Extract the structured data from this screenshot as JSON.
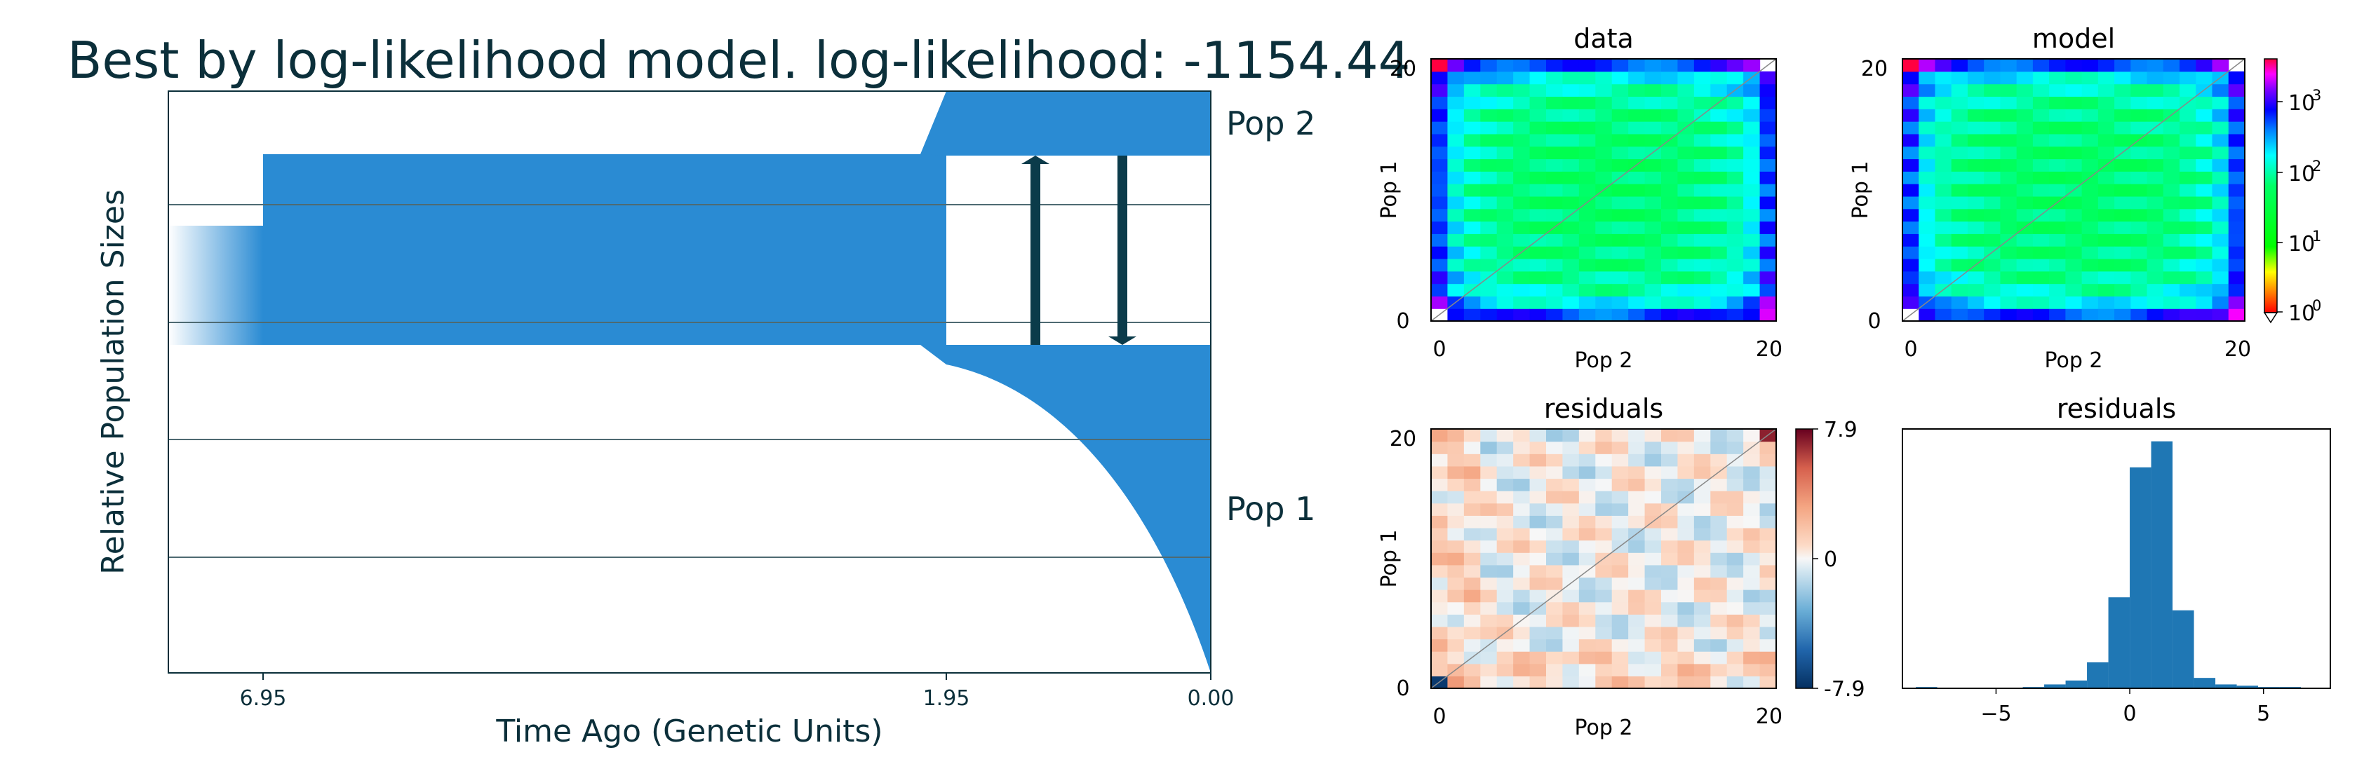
{
  "title": "Best by log-likelihood model. log-likelihood: -1154.44",
  "chart_data": [
    {
      "type": "area",
      "name": "demographic-model",
      "xlabel": "Time Ago (Genetic Units)",
      "ylabel": "Relative Population Sizes",
      "x_ticks": [
        "6.95",
        "1.95",
        "0.00"
      ],
      "populations": [
        "Pop 2",
        "Pop 1"
      ],
      "epochs": [
        {
          "from": 6.95,
          "to": null,
          "description": "ancestral population (before 6.95)"
        },
        {
          "from": 6.95,
          "to": 1.95,
          "description": "ancestral population after size change"
        },
        {
          "from": 1.95,
          "to": 0.0,
          "description": "split into Pop 2 (constant) and Pop 1 (exponential growth)"
        }
      ],
      "migration_arrows": [
        "Pop 1 to Pop 2",
        "Pop 2 to Pop 1"
      ],
      "color": "#2a8bd3",
      "gridline_color": "#4e6a72",
      "arrow_color": "#0b3b4a"
    },
    {
      "type": "heatmap",
      "title": "data",
      "xlabel": "Pop 2",
      "ylabel": "Pop 1",
      "x_ticks": [
        "0",
        "20"
      ],
      "y_ticks": [
        "0",
        "20"
      ],
      "colormap": "hsv",
      "log_scale": true
    },
    {
      "type": "heatmap",
      "title": "model",
      "xlabel": "Pop 2",
      "ylabel": "Pop 1",
      "x_ticks": [
        "0",
        "20"
      ],
      "y_ticks": [
        "0",
        "20"
      ],
      "colormap": "hsv",
      "log_scale": true,
      "colorbar_ticks": [
        "10",
        "10",
        "10",
        "10"
      ],
      "colorbar_exponents": [
        "3",
        "2",
        "1",
        "0"
      ]
    },
    {
      "type": "heatmap",
      "title": "residuals",
      "xlabel": "Pop 2",
      "ylabel": "Pop 1",
      "x_ticks": [
        "0",
        "20"
      ],
      "y_ticks": [
        "0",
        "20"
      ],
      "colormap": "RdBu_r",
      "colorbar_ticks": [
        "7.9",
        "0",
        "-7.9"
      ],
      "vlim": [
        -7.9,
        7.9
      ]
    },
    {
      "type": "bar",
      "title": "residuals",
      "x_ticks": [
        "−5",
        "0",
        "5"
      ],
      "xlim": [
        -8.5,
        7.5
      ],
      "bin_edges": [
        -8,
        -7.2,
        -6.4,
        -5.6,
        -4.8,
        -4,
        -3.2,
        -2.4,
        -1.6,
        -0.8,
        0,
        0.8,
        1.6,
        2.4,
        3.2,
        4,
        4.8,
        5.6,
        6.4
      ],
      "counts": [
        1,
        0,
        0,
        0,
        0,
        1,
        3,
        6,
        20,
        70,
        170,
        190,
        60,
        8,
        3,
        2,
        1,
        1
      ],
      "color": "#1f77b4"
    }
  ]
}
